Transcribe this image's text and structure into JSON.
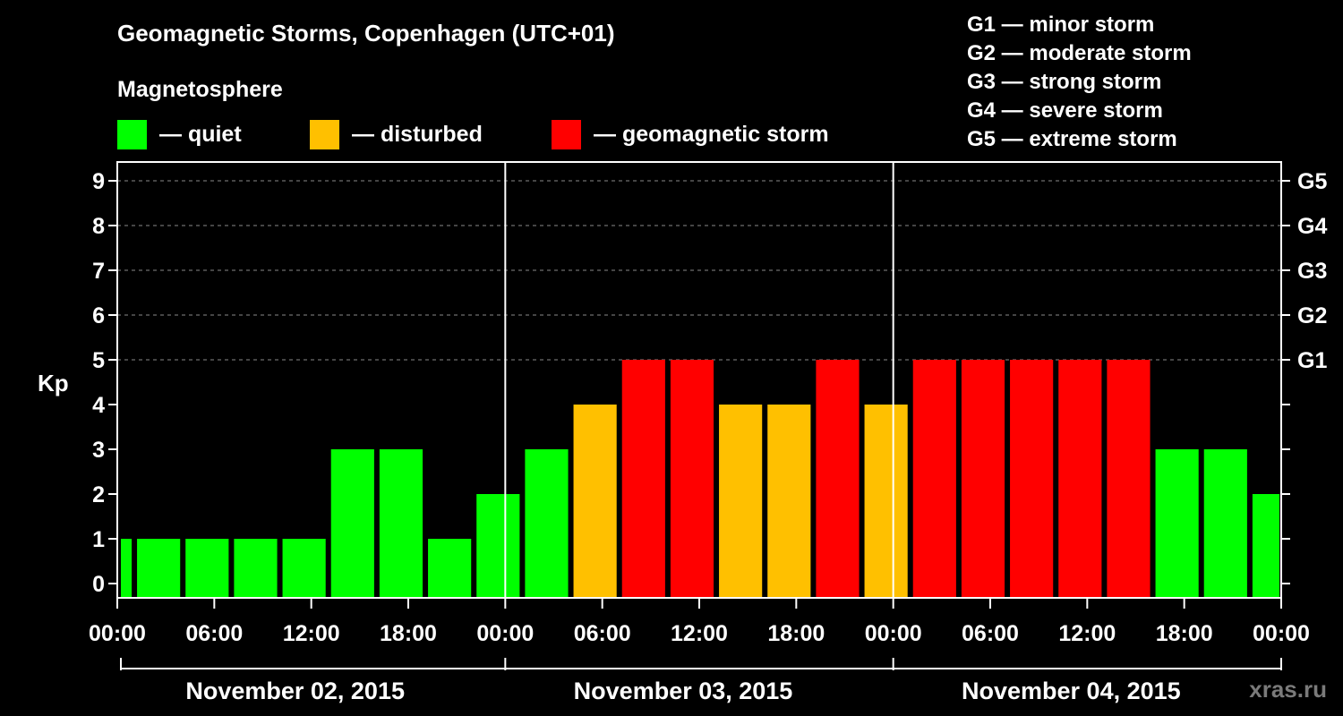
{
  "title": "Geomagnetic Storms, Copenhagen (UTC+01)",
  "legend": {
    "title": "Magnetosphere",
    "items": [
      {
        "label": "— quiet",
        "color": "#00ff00"
      },
      {
        "label": "— disturbed",
        "color": "#ffc000"
      },
      {
        "label": "— geomagnetic storm",
        "color": "#ff0000"
      }
    ]
  },
  "storm_scale": [
    "G1 — minor storm",
    "G2 — moderate storm",
    "G3 — strong storm",
    "G4 — severe storm",
    "G5 — extreme storm"
  ],
  "watermark": "xras.ru",
  "chart_data": {
    "type": "bar",
    "title": "Geomagnetic Storms, Copenhagen (UTC+01)",
    "ylabel": "Kp",
    "ylim": [
      0,
      9
    ],
    "yticks": [
      "0",
      "1",
      "2",
      "3",
      "4",
      "5",
      "6",
      "7",
      "8",
      "9"
    ],
    "right_ticks": [
      {
        "kp": 5,
        "label": "G1"
      },
      {
        "kp": 6,
        "label": "G2"
      },
      {
        "kp": 7,
        "label": "G3"
      },
      {
        "kp": 8,
        "label": "G4"
      },
      {
        "kp": 9,
        "label": "G5"
      }
    ],
    "xrange_hours": [
      0,
      72
    ],
    "xticks": [
      "00:00",
      "06:00",
      "12:00",
      "18:00",
      "00:00",
      "06:00",
      "12:00",
      "18:00",
      "00:00",
      "06:00",
      "12:00",
      "18:00",
      "00:00"
    ],
    "day_labels": [
      "November 02, 2015",
      "November 03, 2015",
      "November 04, 2015"
    ],
    "color_thresholds": {
      "quiet_below": 4,
      "storm_from": 5
    },
    "bars": [
      {
        "start": 0,
        "end": 1,
        "kp": 1
      },
      {
        "start": 1,
        "end": 4,
        "kp": 1
      },
      {
        "start": 4,
        "end": 7,
        "kp": 1
      },
      {
        "start": 7,
        "end": 10,
        "kp": 1
      },
      {
        "start": 10,
        "end": 13,
        "kp": 1
      },
      {
        "start": 13,
        "end": 16,
        "kp": 3
      },
      {
        "start": 16,
        "end": 19,
        "kp": 3
      },
      {
        "start": 19,
        "end": 22,
        "kp": 1
      },
      {
        "start": 22,
        "end": 25,
        "kp": 2
      },
      {
        "start": 25,
        "end": 28,
        "kp": 3
      },
      {
        "start": 28,
        "end": 31,
        "kp": 4
      },
      {
        "start": 31,
        "end": 34,
        "kp": 5
      },
      {
        "start": 34,
        "end": 37,
        "kp": 5
      },
      {
        "start": 37,
        "end": 40,
        "kp": 4
      },
      {
        "start": 40,
        "end": 43,
        "kp": 4
      },
      {
        "start": 43,
        "end": 46,
        "kp": 5
      },
      {
        "start": 46,
        "end": 49,
        "kp": 4
      },
      {
        "start": 49,
        "end": 52,
        "kp": 5
      },
      {
        "start": 52,
        "end": 55,
        "kp": 5
      },
      {
        "start": 55,
        "end": 58,
        "kp": 5
      },
      {
        "start": 58,
        "end": 61,
        "kp": 5
      },
      {
        "start": 61,
        "end": 64,
        "kp": 5
      },
      {
        "start": 64,
        "end": 67,
        "kp": 3
      },
      {
        "start": 67,
        "end": 70,
        "kp": 3
      },
      {
        "start": 70,
        "end": 72,
        "kp": 2
      }
    ]
  }
}
